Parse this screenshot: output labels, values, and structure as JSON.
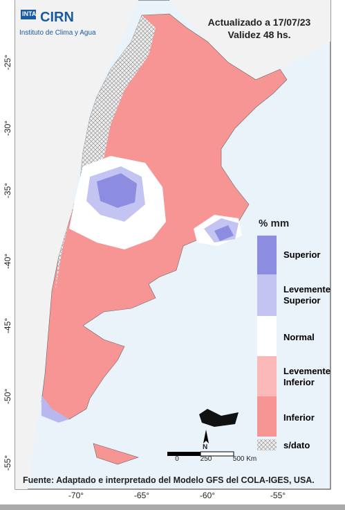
{
  "logo": {
    "inta": "INTA",
    "cirn": "CIRN",
    "institute": "Instituto de Clima y Agua"
  },
  "header": {
    "updated": "Actualizado a 17/07/23",
    "validity": "Validez 48 hs."
  },
  "axes": {
    "lat_ticks": [
      "-25°",
      "-30°",
      "-35°",
      "-40°",
      "-45°",
      "-50°",
      "-55°"
    ],
    "lon_ticks": [
      "-70°",
      "-65°",
      "-60°",
      "-55°"
    ]
  },
  "legend": {
    "title": "% mm",
    "items": [
      "Superior",
      "Levemente Superior",
      "Normal",
      "Levemente Inferior",
      "Inferior",
      "s/dato"
    ]
  },
  "scale": {
    "north": "N",
    "labels": [
      "0",
      "250",
      "500 Km"
    ]
  },
  "footer": "Fuente: Adaptado e interpretado del Modelo GFS del COLA-IGES, USA."
}
